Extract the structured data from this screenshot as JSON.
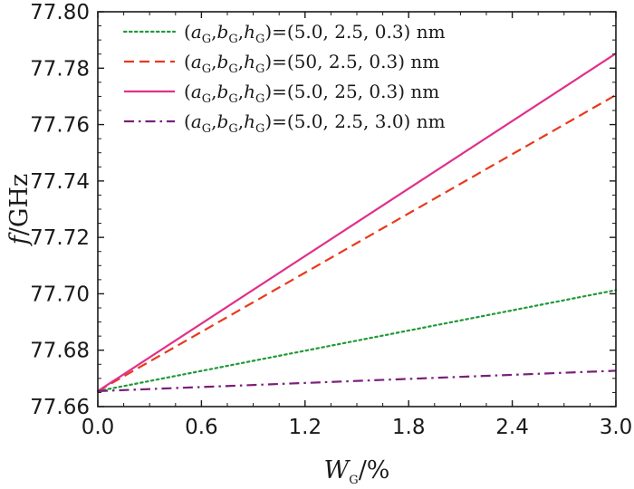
{
  "chart_data": {
    "type": "line",
    "xlabel": {
      "main": "W",
      "sub": "G",
      "unit": "/%"
    },
    "ylabel": {
      "main": "f",
      "unit": "/GHz"
    },
    "xlim": [
      0.0,
      3.0
    ],
    "ylim": [
      77.66,
      77.8
    ],
    "xticks": [
      "0.0",
      "0.6",
      "1.2",
      "1.8",
      "2.4",
      "3.0"
    ],
    "yticks": [
      "77.66",
      "77.68",
      "77.70",
      "77.72",
      "77.74",
      "77.76",
      "77.78",
      "77.80"
    ],
    "grid": false,
    "legend_position": "top-left",
    "series": [
      {
        "name": "(aG,bG,hG)=(5.0, 2.5, 0.3) nm",
        "legend_values": "(5.0, 2.5, 0.3) nm",
        "color": "#1f9a36",
        "style": "dotted",
        "x": [
          0.0,
          3.0
        ],
        "y": [
          77.6655,
          77.7013
        ]
      },
      {
        "name": "(aG,bG,hG)=(50, 2.5, 0.3) nm",
        "legend_values": "(50, 2.5, 0.3) nm",
        "color": "#e8391d",
        "style": "dashed",
        "x": [
          0.0,
          3.0
        ],
        "y": [
          77.6655,
          77.7705
        ]
      },
      {
        "name": "(aG,bG,hG)=(5.0, 25, 0.3) nm",
        "legend_values": "(5.0, 25, 0.3) nm",
        "color": "#e0308a",
        "style": "solid",
        "x": [
          0.0,
          3.0
        ],
        "y": [
          77.6655,
          77.7852
        ]
      },
      {
        "name": "(aG,bG,hG)=(5.0, 2.5, 3.0) nm",
        "legend_values": "(5.0, 2.5, 3.0) nm",
        "color": "#7a1f7a",
        "style": "dashdot",
        "x": [
          0.0,
          3.0
        ],
        "y": [
          77.6655,
          77.6727
        ]
      }
    ]
  }
}
